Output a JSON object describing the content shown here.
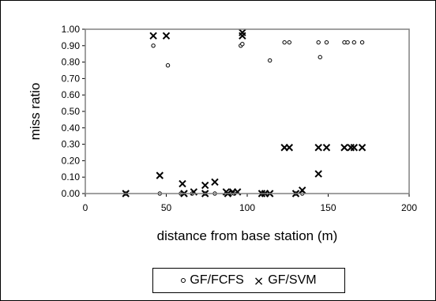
{
  "chart_data": {
    "type": "scatter",
    "xlabel": "distance from base station (m)",
    "ylabel": "miss ratio",
    "xlim": [
      0,
      200
    ],
    "ylim": [
      0,
      1
    ],
    "xticks": [
      "0",
      "50",
      "100",
      "150",
      "200"
    ],
    "yticks": [
      "0.00",
      "0.10",
      "0.20",
      "0.30",
      "0.40",
      "0.50",
      "0.60",
      "0.70",
      "0.80",
      "0.90",
      "1.00"
    ],
    "grid": false,
    "legend_position": "bottom",
    "series": [
      {
        "name": "GF/FCFS",
        "marker": "open-circle",
        "color": "#000000",
        "points": [
          [
            25,
            0.0
          ],
          [
            42,
            0.9
          ],
          [
            46,
            0.0
          ],
          [
            51,
            0.78
          ],
          [
            59,
            0.0
          ],
          [
            60,
            0.0
          ],
          [
            66,
            0.0
          ],
          [
            74,
            0.0
          ],
          [
            80,
            0.0
          ],
          [
            87,
            0.0
          ],
          [
            90,
            0.0
          ],
          [
            92,
            0.0
          ],
          [
            96,
            0.9
          ],
          [
            97,
            0.91
          ],
          [
            109,
            0.0
          ],
          [
            112,
            0.0
          ],
          [
            114,
            0.81
          ],
          [
            123,
            0.92
          ],
          [
            126,
            0.92
          ],
          [
            130,
            0.0
          ],
          [
            134,
            0.0
          ],
          [
            144,
            0.92
          ],
          [
            145,
            0.83
          ],
          [
            149,
            0.92
          ],
          [
            160,
            0.92
          ],
          [
            162,
            0.92
          ],
          [
            166,
            0.92
          ],
          [
            171,
            0.92
          ]
        ]
      },
      {
        "name": "GF/SVM",
        "marker": "x",
        "color": "#000000",
        "points": [
          [
            25,
            0.0
          ],
          [
            42,
            0.96
          ],
          [
            46,
            0.11
          ],
          [
            50,
            0.96
          ],
          [
            60,
            0.06
          ],
          [
            61,
            0.0
          ],
          [
            67,
            0.01
          ],
          [
            74,
            0.05
          ],
          [
            74,
            0.0
          ],
          [
            80,
            0.07
          ],
          [
            87,
            0.01
          ],
          [
            88,
            0.0
          ],
          [
            91,
            0.01
          ],
          [
            94,
            0.01
          ],
          [
            97,
            0.98
          ],
          [
            97,
            0.96
          ],
          [
            109,
            0.0
          ],
          [
            111,
            0.0
          ],
          [
            114,
            0.0
          ],
          [
            123,
            0.28
          ],
          [
            126,
            0.28
          ],
          [
            130,
            0.0
          ],
          [
            134,
            0.02
          ],
          [
            144,
            0.12
          ],
          [
            144,
            0.28
          ],
          [
            149,
            0.28
          ],
          [
            160,
            0.28
          ],
          [
            164,
            0.28
          ],
          [
            166,
            0.28
          ],
          [
            171,
            0.28
          ]
        ]
      }
    ]
  }
}
